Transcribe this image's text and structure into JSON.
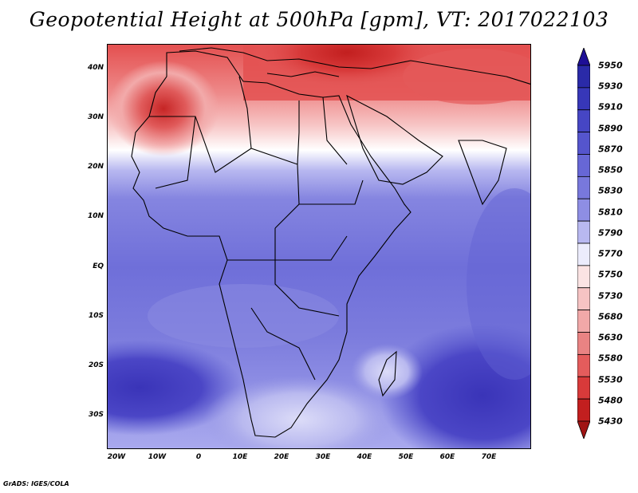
{
  "title": "Geopotential Height at 500hPa [gpm], VT: 2017022103",
  "credit": "GrADS: IGES/COLA",
  "map": {
    "lat_labels": [
      "40N",
      "30N",
      "20N",
      "10N",
      "EQ",
      "10S",
      "20S",
      "30S"
    ],
    "lon_labels": [
      "20W",
      "10W",
      "0",
      "10E",
      "20E",
      "30E",
      "40E",
      "50E",
      "60E",
      "70E"
    ]
  },
  "colorbar": {
    "levels": [
      "5950",
      "5930",
      "5910",
      "5890",
      "5870",
      "5850",
      "5830",
      "5810",
      "5790",
      "5770",
      "5750",
      "5730",
      "5680",
      "5630",
      "5580",
      "5530",
      "5480",
      "5430"
    ],
    "colors": [
      "#1e0f96",
      "#2a2aa8",
      "#3737b8",
      "#4646c4",
      "#5555cd",
      "#6767d6",
      "#7878dc",
      "#8e8ee4",
      "#b8b8f0",
      "#ececfc",
      "#fbe3e3",
      "#f6c3c3",
      "#f1a8a8",
      "#e98383",
      "#e45c5c",
      "#d83a3a",
      "#c21f1f",
      "#a01414"
    ]
  }
}
